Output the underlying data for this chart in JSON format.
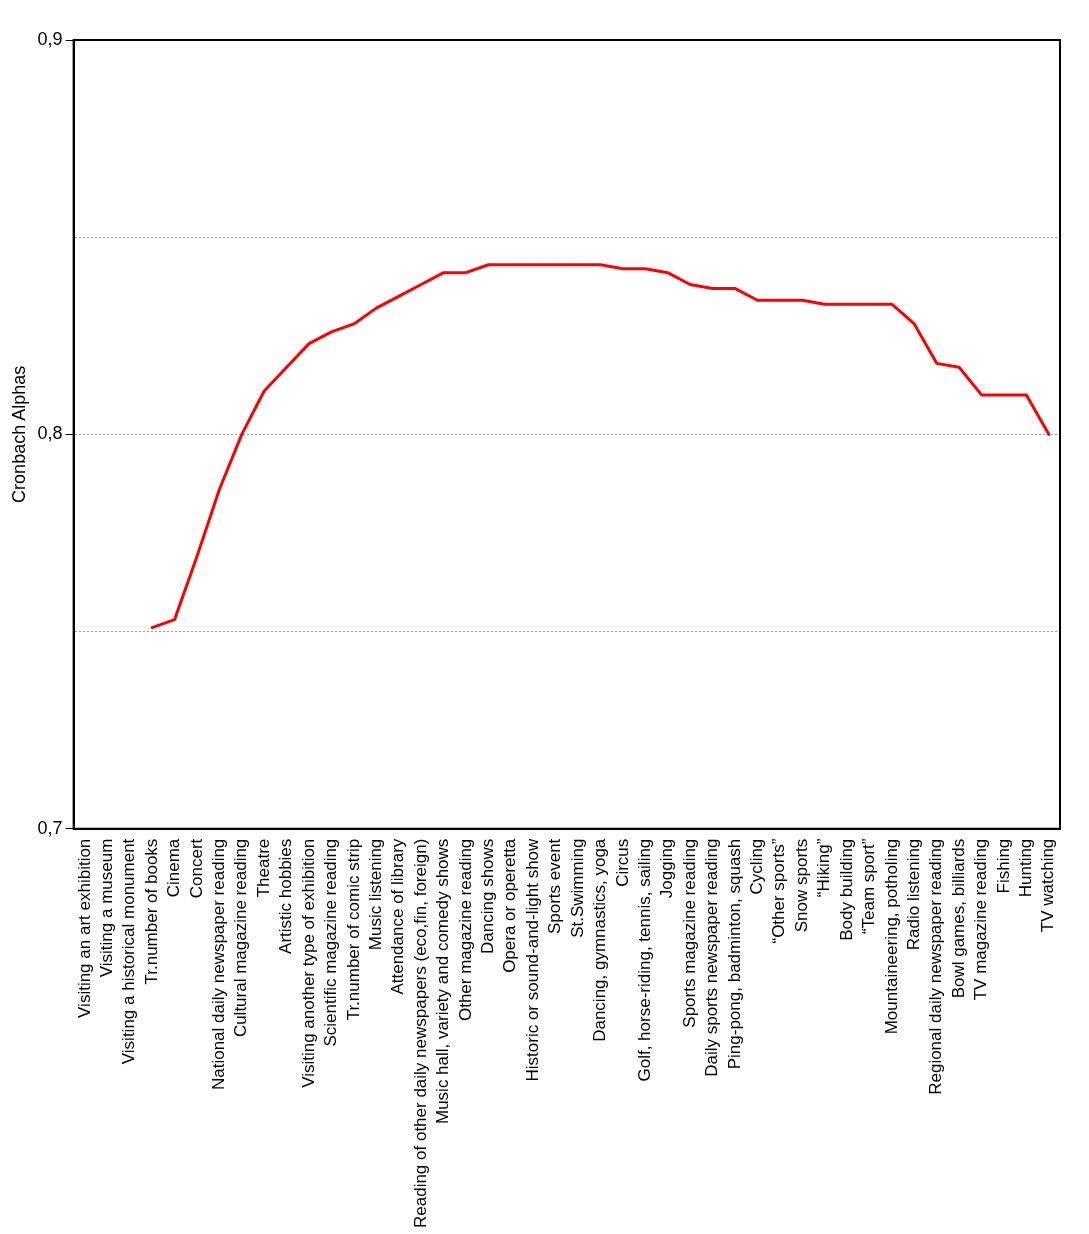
{
  "chart_data": {
    "type": "line",
    "ylabel": "Cronbach Alphas",
    "categories": [
      "Visiting an art exhibition",
      "Visiting a museum",
      "Visiting a historical monument",
      "Tr.number of books",
      "Cinema",
      "Concert",
      "National daily newspaper reading",
      "Cultural magazine reading",
      "Theatre",
      "Artistic hobbies",
      "Visiting another type of exhibition",
      "Scientific magazine reading",
      "Tr.number of comic strip",
      "Music listening",
      "Attendance of library",
      "Reading of other daily newspapers (eco,fin, foreign)",
      "Music hall, variety and comedy shows",
      "Other magazine reading",
      "Dancing shows",
      "Opera or operetta",
      "Historic or sound-and-light show",
      "Sports event",
      "St.Swimming",
      "Dancing, gymnastics, yoga",
      "Circus",
      "Golf, horse-riding, tennis, sailing",
      "Jogging",
      "Sports magazine reading",
      "Daily sports newspaper reading",
      "Ping-pong, badminton, squash",
      "Cycling",
      "“Other sports”",
      "Snow sports",
      "“Hiking”",
      "Body building",
      "“Team sport”",
      "Mountaineering, potholing",
      "Radio listening",
      "Regional daily newspaper reading",
      "Bowl games, billiards",
      "TV magazine reading",
      "Fishing",
      "Hunting",
      "TV watching"
    ],
    "series": [
      {
        "color": "#ff0000",
        "values": [
          null,
          null,
          null,
          0.751,
          0.753,
          0.769,
          0.786,
          0.8,
          0.811,
          0.817,
          0.823,
          0.826,
          0.828,
          0.832,
          0.835,
          0.838,
          0.841,
          0.841,
          0.843,
          0.843,
          0.843,
          0.843,
          0.843,
          0.843,
          0.842,
          0.842,
          0.841,
          0.838,
          0.837,
          0.837,
          0.834,
          0.834,
          0.834,
          0.833,
          0.833,
          0.833,
          0.833,
          0.828,
          0.818,
          0.817,
          0.81,
          0.81,
          0.81,
          0.8
        ]
      }
    ],
    "ylim": [
      0.7,
      0.9
    ],
    "yticks": [
      {
        "value": 0.7,
        "label": "0,7"
      },
      {
        "value": 0.75,
        "label": null
      },
      {
        "value": 0.8,
        "label": "0,8"
      },
      {
        "value": 0.85,
        "label": null
      },
      {
        "value": 0.9,
        "label": "0,9"
      }
    ],
    "grid": "y",
    "legend": false,
    "marker": "none",
    "line_style": "solid"
  }
}
